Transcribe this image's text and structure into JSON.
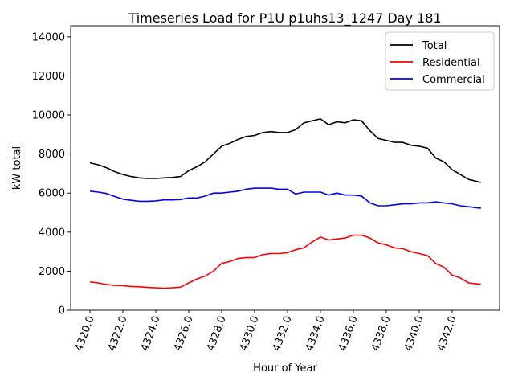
{
  "chart_data": {
    "type": "line",
    "title": "Timeseries Load for P1U p1uhs13_1247  Day 181",
    "xlabel": "Hour of Year",
    "ylabel": "kW total",
    "xlim": [
      4318.83,
      4344.88
    ],
    "ylim": [
      0,
      14570
    ],
    "xticks": [
      4320,
      4322,
      4324,
      4326,
      4328,
      4330,
      4332,
      4334,
      4336,
      4338,
      4340,
      4342
    ],
    "xtick_labels": [
      "4320.0",
      "4322.0",
      "4324.0",
      "4326.0",
      "4328.0",
      "4330.0",
      "4332.0",
      "4334.0",
      "4336.0",
      "4338.0",
      "4340.0",
      "4342.0"
    ],
    "yticks": [
      0,
      2000,
      4000,
      6000,
      8000,
      10000,
      12000,
      14000
    ],
    "ytick_labels": [
      "0",
      "2000",
      "4000",
      "6000",
      "8000",
      "10000",
      "12000",
      "14000"
    ],
    "grid": false,
    "legend_position": "top-right",
    "x": [
      4320,
      4320.5,
      4321,
      4321.5,
      4322,
      4322.5,
      4323,
      4323.5,
      4324,
      4324.5,
      4325,
      4325.5,
      4326,
      4326.5,
      4327,
      4327.5,
      4328,
      4328.5,
      4329,
      4329.5,
      4330,
      4330.5,
      4331,
      4331.5,
      4332,
      4332.5,
      4333,
      4333.5,
      4334,
      4334.5,
      4335,
      4335.5,
      4336,
      4336.5,
      4337,
      4337.5,
      4338,
      4338.5,
      4339,
      4339.5,
      4340,
      4340.5,
      4341,
      4341.5,
      4342,
      4342.5,
      4343,
      4343.5,
      4343.75
    ],
    "series": [
      {
        "name": "Total",
        "color": "#000000",
        "values": [
          7550,
          7450,
          7300,
          7100,
          6950,
          6850,
          6780,
          6750,
          6750,
          6780,
          6800,
          6850,
          7150,
          7350,
          7600,
          8000,
          8400,
          8550,
          8750,
          8900,
          8950,
          9100,
          9150,
          9100,
          9100,
          9250,
          9600,
          9700,
          9800,
          9500,
          9650,
          9600,
          9750,
          9700,
          9200,
          8800,
          8700,
          8600,
          8600,
          8450,
          8400,
          8300,
          7800,
          7600,
          7200,
          6950,
          6700,
          6600,
          6550
        ]
      },
      {
        "name": "Residential",
        "color": "#ff0000",
        "values": [
          1450,
          1400,
          1320,
          1270,
          1260,
          1220,
          1200,
          1170,
          1150,
          1130,
          1150,
          1180,
          1400,
          1600,
          1750,
          2000,
          2400,
          2500,
          2650,
          2700,
          2700,
          2850,
          2900,
          2900,
          2950,
          3100,
          3200,
          3500,
          3750,
          3600,
          3650,
          3700,
          3850,
          3850,
          3700,
          3450,
          3350,
          3200,
          3150,
          3000,
          2900,
          2800,
          2400,
          2200,
          1800,
          1650,
          1400,
          1350,
          1330
        ]
      },
      {
        "name": "Commercial",
        "color": "#0000ff",
        "values": [
          6100,
          6050,
          5980,
          5830,
          5690,
          5630,
          5580,
          5580,
          5600,
          5650,
          5650,
          5670,
          5750,
          5750,
          5850,
          6000,
          6000,
          6050,
          6100,
          6200,
          6250,
          6250,
          6250,
          6200,
          6200,
          5950,
          6050,
          6050,
          6050,
          5900,
          6000,
          5900,
          5900,
          5850,
          5500,
          5350,
          5350,
          5400,
          5450,
          5450,
          5500,
          5500,
          5550,
          5500,
          5450,
          5350,
          5300,
          5250,
          5230
        ]
      }
    ]
  }
}
